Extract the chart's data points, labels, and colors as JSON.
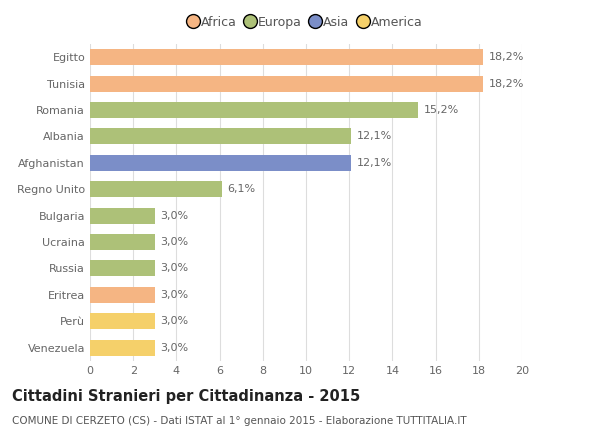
{
  "countries": [
    "Egitto",
    "Tunisia",
    "Romania",
    "Albania",
    "Afghanistan",
    "Regno Unito",
    "Bulgaria",
    "Ucraina",
    "Russia",
    "Eritrea",
    "Perù",
    "Venezuela"
  ],
  "values": [
    18.2,
    18.2,
    15.2,
    12.1,
    12.1,
    6.1,
    3.0,
    3.0,
    3.0,
    3.0,
    3.0,
    3.0
  ],
  "labels": [
    "18,2%",
    "18,2%",
    "15,2%",
    "12,1%",
    "12,1%",
    "6,1%",
    "3,0%",
    "3,0%",
    "3,0%",
    "3,0%",
    "3,0%",
    "3,0%"
  ],
  "colors": [
    "#f5b583",
    "#f5b583",
    "#adc178",
    "#adc178",
    "#7b8ec8",
    "#adc178",
    "#adc178",
    "#adc178",
    "#adc178",
    "#f5b583",
    "#f5d06a",
    "#f5d06a"
  ],
  "legend_labels": [
    "Africa",
    "Europa",
    "Asia",
    "America"
  ],
  "legend_colors": [
    "#f5b583",
    "#adc178",
    "#7b8ec8",
    "#f5d06a"
  ],
  "title": "Cittadini Stranieri per Cittadinanza - 2015",
  "subtitle": "COMUNE DI CERZETO (CS) - Dati ISTAT al 1° gennaio 2015 - Elaborazione TUTTITALIA.IT",
  "xlim": [
    0,
    20
  ],
  "xticks": [
    0,
    2,
    4,
    6,
    8,
    10,
    12,
    14,
    16,
    18,
    20
  ],
  "bg_color": "#ffffff",
  "grid_color": "#dddddd",
  "bar_height": 0.6,
  "title_fontsize": 10.5,
  "subtitle_fontsize": 7.5,
  "label_fontsize": 8,
  "tick_fontsize": 8,
  "legend_fontsize": 9
}
